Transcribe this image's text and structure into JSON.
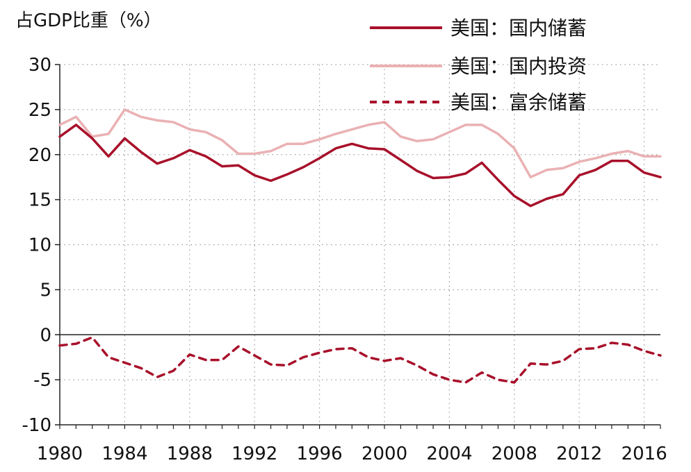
{
  "chart_data": {
    "type": "line",
    "ylabel": "占GDP比重（%）",
    "ylim": [
      -10,
      30
    ],
    "yticks": [
      -10,
      -5,
      0,
      5,
      10,
      15,
      20,
      25,
      30
    ],
    "xlim": [
      1980,
      2017
    ],
    "xticks": [
      1980,
      1984,
      1988,
      1992,
      1996,
      2000,
      2004,
      2008,
      2012,
      2016
    ],
    "grid": "dotted",
    "legend_position": "top-right",
    "x": [
      1980,
      1981,
      1982,
      1983,
      1984,
      1985,
      1986,
      1987,
      1988,
      1989,
      1990,
      1991,
      1992,
      1993,
      1994,
      1995,
      1996,
      1997,
      1998,
      1999,
      2000,
      2001,
      2002,
      2003,
      2004,
      2005,
      2006,
      2007,
      2008,
      2009,
      2010,
      2011,
      2012,
      2013,
      2014,
      2015,
      2016,
      2017
    ],
    "series": [
      {
        "name": "美国：国内储蓄",
        "color": "#a8102a",
        "style": "solid",
        "values": [
          22.0,
          23.3,
          21.8,
          19.8,
          21.8,
          20.3,
          19.0,
          19.6,
          20.5,
          19.8,
          18.7,
          18.8,
          17.7,
          17.1,
          17.8,
          18.6,
          19.6,
          20.7,
          21.2,
          20.7,
          20.6,
          19.4,
          18.2,
          17.4,
          17.5,
          17.9,
          19.1,
          17.2,
          15.4,
          14.3,
          15.1,
          15.6,
          17.7,
          18.3,
          19.3,
          19.3,
          18.0,
          17.5
        ]
      },
      {
        "name": "美国：国内投资",
        "color": "#eab1b3",
        "style": "solid",
        "values": [
          23.3,
          24.2,
          22.0,
          22.3,
          25.0,
          24.2,
          23.8,
          23.6,
          22.8,
          22.5,
          21.6,
          20.1,
          20.1,
          20.4,
          21.2,
          21.2,
          21.7,
          22.3,
          22.8,
          23.3,
          23.6,
          22.0,
          21.5,
          21.7,
          22.5,
          23.3,
          23.3,
          22.3,
          20.7,
          17.5,
          18.3,
          18.5,
          19.2,
          19.6,
          20.1,
          20.4,
          19.8,
          19.8
        ]
      },
      {
        "name": "美国：富余储蓄",
        "color": "#a8102a",
        "style": "dashed",
        "values": [
          -1.2,
          -1.0,
          -0.3,
          -2.5,
          -3.1,
          -3.7,
          -4.7,
          -4.0,
          -2.2,
          -2.8,
          -2.8,
          -1.3,
          -2.3,
          -3.3,
          -3.4,
          -2.5,
          -2.0,
          -1.6,
          -1.5,
          -2.5,
          -2.9,
          -2.6,
          -3.4,
          -4.4,
          -5.0,
          -5.3,
          -4.2,
          -5.0,
          -5.3,
          -3.2,
          -3.3,
          -2.9,
          -1.6,
          -1.5,
          -0.9,
          -1.1,
          -1.8,
          -2.3
        ]
      }
    ]
  }
}
